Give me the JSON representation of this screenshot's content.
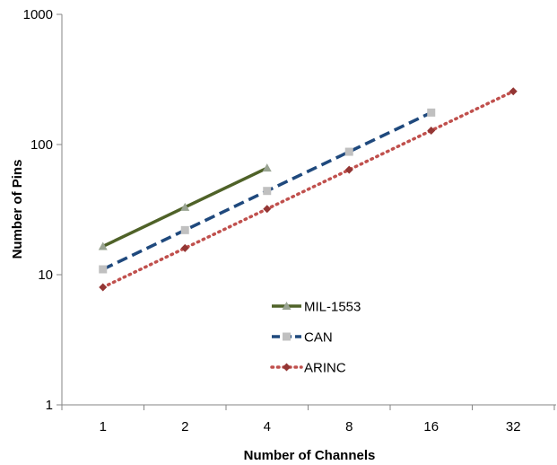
{
  "chart_data": {
    "type": "line",
    "xlabel": "Number of Channels",
    "ylabel": "Number of Pins",
    "x_scale": "log2",
    "y_scale": "log10",
    "categories": [
      "1",
      "2",
      "4",
      "8",
      "16",
      "32"
    ],
    "y_ticks": [
      "1",
      "10",
      "100",
      "1000"
    ],
    "ylim": [
      1,
      1000
    ],
    "grid": false,
    "legend_position": "center",
    "series": [
      {
        "name": "MIL-1553",
        "x": [
          1,
          2,
          4
        ],
        "values": [
          16.5,
          33,
          66
        ],
        "color": "#4f6228",
        "line_style": "solid",
        "marker": "triangle",
        "marker_color": "#9aa493"
      },
      {
        "name": "CAN",
        "x": [
          1,
          2,
          4,
          8,
          16
        ],
        "values": [
          11,
          22,
          44,
          88,
          176
        ],
        "color": "#1f497d",
        "line_style": "dashed",
        "marker": "square",
        "marker_color": "#c0c0c0"
      },
      {
        "name": "ARINC",
        "x": [
          1,
          2,
          4,
          8,
          16,
          32
        ],
        "values": [
          8,
          16,
          32,
          64,
          128,
          256
        ],
        "color": "#c0504d",
        "line_style": "dotted",
        "marker": "diamond",
        "marker_color": "#943634"
      }
    ]
  }
}
